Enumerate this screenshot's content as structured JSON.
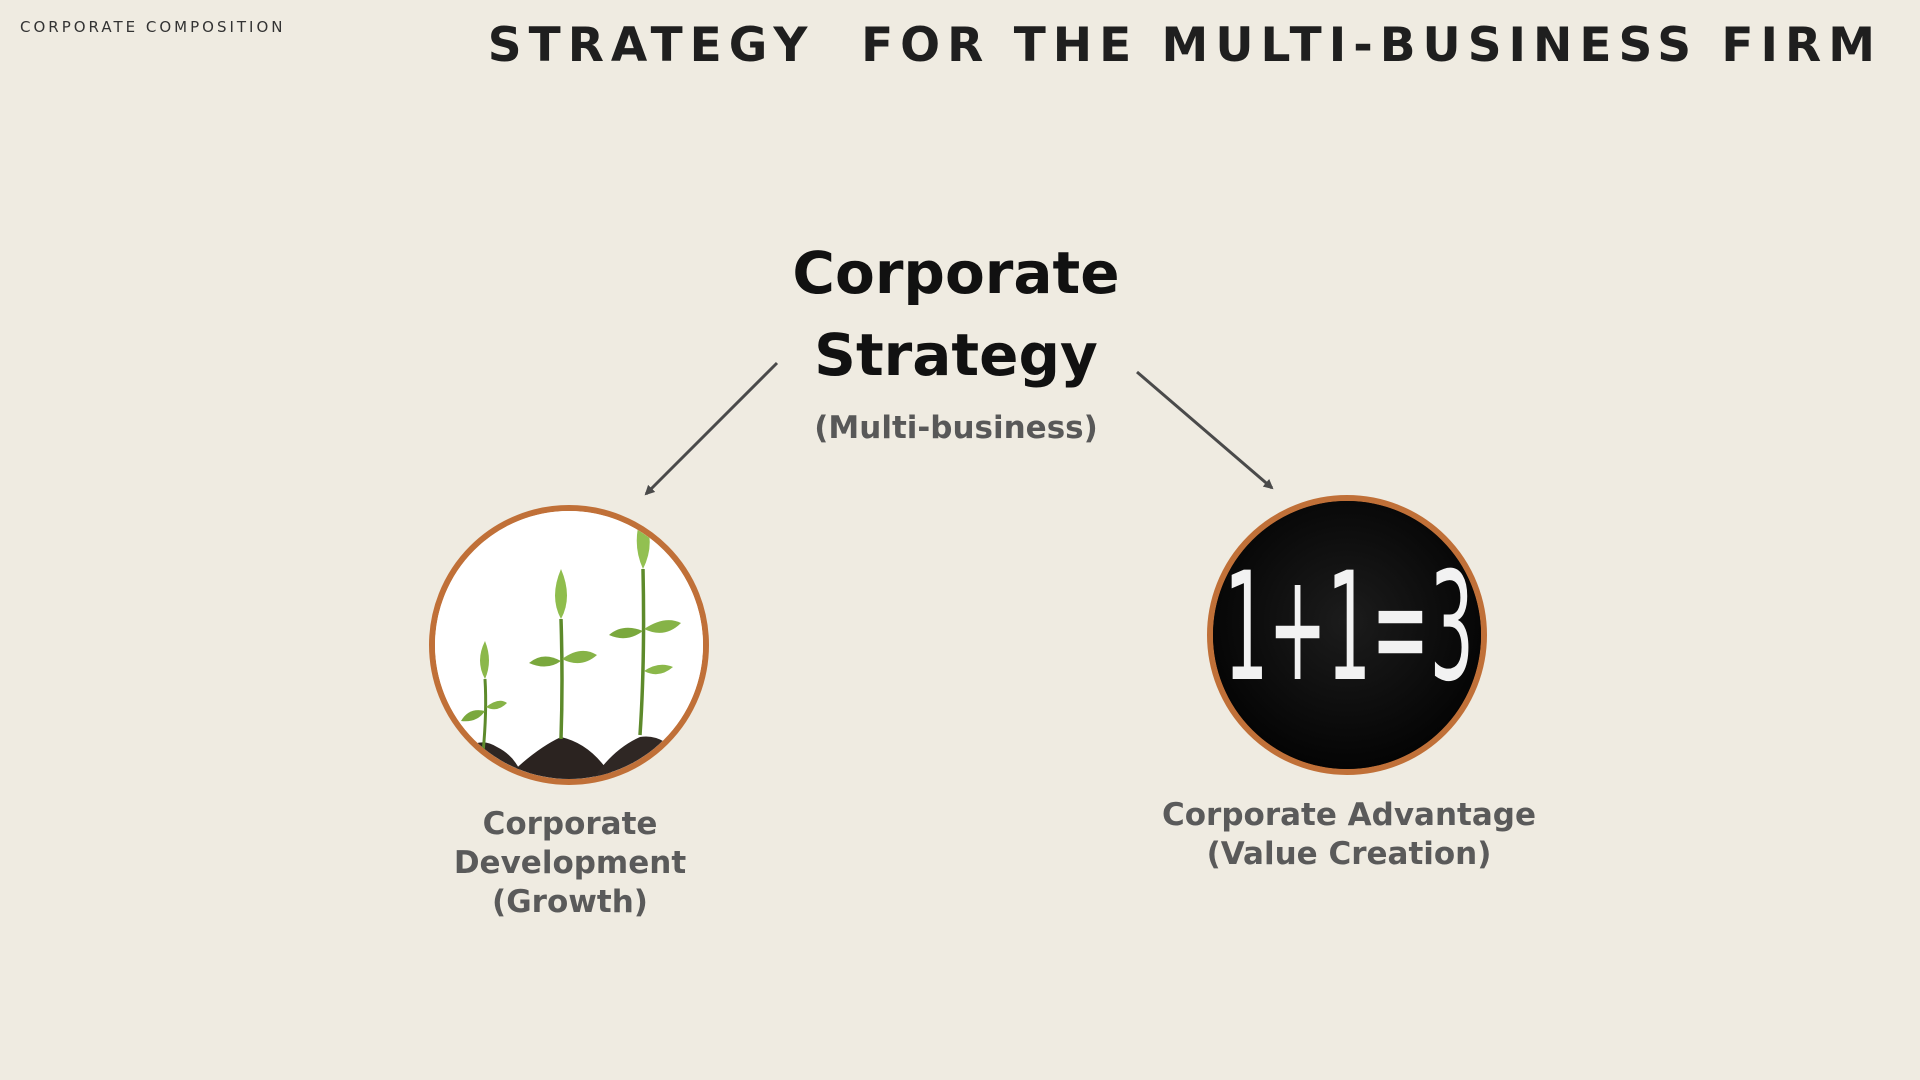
{
  "header": {
    "section_label": "CORPORATE COMPOSITION",
    "title": "STRATEGY  FOR THE MULTI-BUSINESS FIRM"
  },
  "center": {
    "title_line1": "Corporate",
    "title_line2": "Strategy",
    "subtitle": "(Multi-business)"
  },
  "left_node": {
    "image_subject": "sprouting seedlings in soil",
    "caption_line1": "Corporate",
    "caption_line2": "Development",
    "caption_line3": "(Growth)"
  },
  "right_node": {
    "image_text": "1+1=3",
    "caption_line1": "Corporate Advantage",
    "caption_line2": "(Value Creation)"
  },
  "colors": {
    "background": "#efebe1",
    "circle_border": "#c07038",
    "arrow": "#4a4a4a",
    "caption": "#5a5a5a"
  }
}
